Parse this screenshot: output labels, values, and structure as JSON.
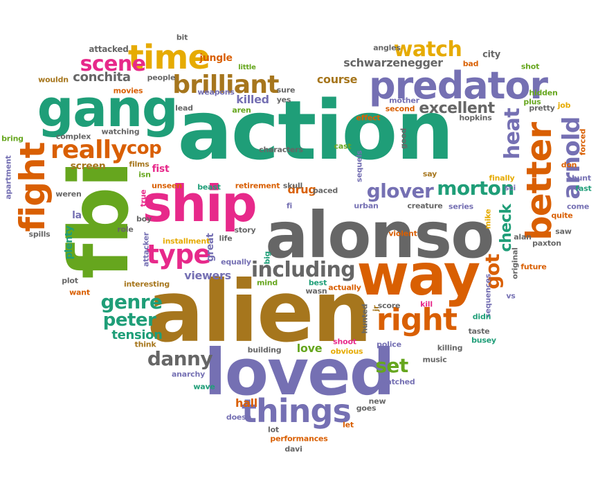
{
  "colors": {
    "teal": "#1f9e78",
    "green": "#66a61e",
    "pink": "#e7298a",
    "orange": "#d95f02",
    "purple": "#7570b3",
    "gold": "#e6ab02",
    "brown": "#a6761d",
    "gray": "#666666"
  },
  "words": [
    {
      "text": "action",
      "color": "teal"
    },
    {
      "text": "alien",
      "color": "brown"
    },
    {
      "text": "alonso",
      "color": "gray"
    },
    {
      "text": "fbi",
      "color": "green"
    },
    {
      "text": "ship",
      "color": "pink"
    },
    {
      "text": "loved",
      "color": "purple"
    },
    {
      "text": "way",
      "color": "orange"
    },
    {
      "text": "gang",
      "color": "teal"
    },
    {
      "text": "predator",
      "color": "purple"
    },
    {
      "text": "better",
      "color": "orange"
    },
    {
      "text": "fight",
      "color": "orange"
    },
    {
      "text": "time",
      "color": "gold"
    },
    {
      "text": "right",
      "color": "orange"
    },
    {
      "text": "things",
      "color": "purple"
    },
    {
      "text": "brilliant",
      "color": "brown"
    },
    {
      "text": "morton",
      "color": "teal"
    },
    {
      "text": "glover",
      "color": "purple"
    },
    {
      "text": "really",
      "color": "orange"
    },
    {
      "text": "type",
      "color": "pink"
    },
    {
      "text": "including",
      "color": "gray"
    },
    {
      "text": "arnold",
      "color": "purple"
    },
    {
      "text": "watch",
      "color": "gold"
    },
    {
      "text": "scene",
      "color": "pink"
    },
    {
      "text": "genre",
      "color": "teal"
    },
    {
      "text": "danny",
      "color": "gray"
    },
    {
      "text": "peter",
      "color": "teal"
    },
    {
      "text": "excellent",
      "color": "gray"
    },
    {
      "text": "heat",
      "color": "purple"
    },
    {
      "text": "cop",
      "color": "orange"
    },
    {
      "text": "check",
      "color": "teal"
    },
    {
      "text": "got",
      "color": "orange"
    },
    {
      "text": "set",
      "color": "green"
    },
    {
      "text": "tension",
      "color": "teal"
    },
    {
      "text": "conchita",
      "color": "gray"
    },
    {
      "text": "schwarzenegger",
      "color": "gray"
    },
    {
      "text": "course",
      "color": "brown"
    },
    {
      "text": "killed",
      "color": "purple"
    },
    {
      "text": "drug",
      "color": "orange"
    },
    {
      "text": "viewers",
      "color": "purple"
    },
    {
      "text": "love",
      "color": "green"
    },
    {
      "text": "hall",
      "color": "orange"
    },
    {
      "text": "jungle",
      "color": "orange"
    },
    {
      "text": "fist",
      "color": "pink"
    },
    {
      "text": "screen",
      "color": "brown"
    },
    {
      "text": "plenty",
      "color": "teal"
    },
    {
      "text": "great",
      "color": "purple"
    },
    {
      "text": "la",
      "color": "purple"
    },
    {
      "text": "attacked",
      "color": "gray"
    },
    {
      "text": "bit",
      "color": "gray"
    },
    {
      "text": "angles",
      "color": "gray"
    },
    {
      "text": "city",
      "color": "gray"
    },
    {
      "text": "little",
      "color": "green"
    },
    {
      "text": "bad",
      "color": "orange"
    },
    {
      "text": "shot",
      "color": "green"
    },
    {
      "text": "wouldn",
      "color": "brown"
    },
    {
      "text": "people",
      "color": "gray"
    },
    {
      "text": "sure",
      "color": "gray"
    },
    {
      "text": "movies",
      "color": "orange"
    },
    {
      "text": "weapons",
      "color": "purple"
    },
    {
      "text": "hidden",
      "color": "green"
    },
    {
      "text": "lead",
      "color": "gray"
    },
    {
      "text": "aren",
      "color": "green"
    },
    {
      "text": "yes",
      "color": "gray"
    },
    {
      "text": "mother",
      "color": "purple"
    },
    {
      "text": "second",
      "color": "orange"
    },
    {
      "text": "plus",
      "color": "green"
    },
    {
      "text": "pretty",
      "color": "gray"
    },
    {
      "text": "job",
      "color": "gold"
    },
    {
      "text": "effect",
      "color": "orange"
    },
    {
      "text": "hopkins",
      "color": "gray"
    },
    {
      "text": "bring",
      "color": "green"
    },
    {
      "text": "complex",
      "color": "gray"
    },
    {
      "text": "watching",
      "color": "gray"
    },
    {
      "text": "characters",
      "color": "gray"
    },
    {
      "text": "good",
      "color": "gray"
    },
    {
      "text": "forced",
      "color": "orange"
    },
    {
      "text": "don",
      "color": "orange"
    },
    {
      "text": "films",
      "color": "brown"
    },
    {
      "text": "cast",
      "color": "green"
    },
    {
      "text": "sequels",
      "color": "purple"
    },
    {
      "text": "say",
      "color": "brown"
    },
    {
      "text": "finally",
      "color": "gold"
    },
    {
      "text": "hunt",
      "color": "purple"
    },
    {
      "text": "apartment",
      "color": "purple"
    },
    {
      "text": "isn",
      "color": "green"
    },
    {
      "text": "true",
      "color": "pink"
    },
    {
      "text": "unseen",
      "color": "orange"
    },
    {
      "text": "beast",
      "color": "teal"
    },
    {
      "text": "retirement",
      "color": "orange"
    },
    {
      "text": "skull",
      "color": "gray"
    },
    {
      "text": "paced",
      "color": "gray"
    },
    {
      "text": "sci",
      "color": "purple"
    },
    {
      "text": "fast",
      "color": "teal"
    },
    {
      "text": "weren",
      "color": "gray"
    },
    {
      "text": "boy",
      "color": "gray"
    },
    {
      "text": "fi",
      "color": "purple"
    },
    {
      "text": "urban",
      "color": "purple"
    },
    {
      "text": "creature",
      "color": "gray"
    },
    {
      "text": "series",
      "color": "purple"
    },
    {
      "text": "mike",
      "color": "gold"
    },
    {
      "text": "come",
      "color": "purple"
    },
    {
      "text": "spills",
      "color": "gray"
    },
    {
      "text": "role",
      "color": "gray"
    },
    {
      "text": "attacker",
      "color": "purple"
    },
    {
      "text": "installment",
      "color": "gold"
    },
    {
      "text": "life",
      "color": "gray"
    },
    {
      "text": "story",
      "color": "gray"
    },
    {
      "text": "violent",
      "color": "orange"
    },
    {
      "text": "quite",
      "color": "orange"
    },
    {
      "text": "saw",
      "color": "gray"
    },
    {
      "text": "paxton",
      "color": "gray"
    },
    {
      "text": "equally",
      "color": "purple"
    },
    {
      "text": "big",
      "color": "teal"
    },
    {
      "text": "alan",
      "color": "gray"
    },
    {
      "text": "plot",
      "color": "gray"
    },
    {
      "text": "want",
      "color": "orange"
    },
    {
      "text": "interesting",
      "color": "brown"
    },
    {
      "text": "mind",
      "color": "green"
    },
    {
      "text": "best",
      "color": "teal"
    },
    {
      "text": "wasn",
      "color": "gray"
    },
    {
      "text": "actually",
      "color": "orange"
    },
    {
      "text": "original",
      "color": "gray"
    },
    {
      "text": "future",
      "color": "orange"
    },
    {
      "text": "sequences",
      "color": "purple"
    },
    {
      "text": "vs",
      "color": "purple"
    },
    {
      "text": "jr",
      "color": "brown"
    },
    {
      "text": "score",
      "color": "gray"
    },
    {
      "text": "kill",
      "color": "pink"
    },
    {
      "text": "hunted",
      "color": "gray"
    },
    {
      "text": "didn",
      "color": "teal"
    },
    {
      "text": "taste",
      "color": "gray"
    },
    {
      "text": "think",
      "color": "brown"
    },
    {
      "text": "building",
      "color": "gray"
    },
    {
      "text": "shoot",
      "color": "pink"
    },
    {
      "text": "obvious",
      "color": "gold"
    },
    {
      "text": "police",
      "color": "purple"
    },
    {
      "text": "killing",
      "color": "gray"
    },
    {
      "text": "busey",
      "color": "teal"
    },
    {
      "text": "music",
      "color": "gray"
    },
    {
      "text": "anarchy",
      "color": "purple"
    },
    {
      "text": "watched",
      "color": "purple"
    },
    {
      "text": "wave",
      "color": "teal"
    },
    {
      "text": "doesn",
      "color": "purple"
    },
    {
      "text": "goes",
      "color": "gray"
    },
    {
      "text": "new",
      "color": "gray"
    },
    {
      "text": "lot",
      "color": "gray"
    },
    {
      "text": "let",
      "color": "orange"
    },
    {
      "text": "performances",
      "color": "orange"
    },
    {
      "text": "davi",
      "color": "gray"
    }
  ]
}
